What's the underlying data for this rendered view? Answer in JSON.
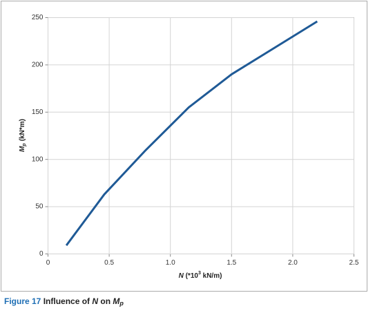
{
  "chart_data": {
    "type": "line",
    "xlabel": {
      "symbol": "N",
      "unit_start": "(*10",
      "superscript": "3",
      "unit_end": " kN/m)"
    },
    "ylabel": {
      "symbol": "M",
      "subscript": "p",
      "unit": "(kN*m)"
    },
    "x": [
      0.15,
      0.46,
      0.8,
      1.15,
      1.5,
      2.2
    ],
    "series": [
      {
        "color": "#1f5a96",
        "values": [
          9,
          63,
          110,
          155,
          190,
          246
        ]
      }
    ],
    "xlim": [
      0,
      2.5
    ],
    "xticks": [
      0,
      0.5,
      {
        "value": 1,
        "label": "1.0"
      },
      1.5,
      {
        "value": 2,
        "label": "2.0"
      },
      2.5
    ],
    "ylim": [
      0,
      250
    ],
    "yticks": [
      0,
      50,
      100,
      150,
      200,
      250
    ],
    "grid": true
  },
  "caption": {
    "label": "Figure 17",
    "text": "Influence of",
    "symbol": "N",
    "text2": "on",
    "symbol2": "M",
    "subscript": "p"
  }
}
